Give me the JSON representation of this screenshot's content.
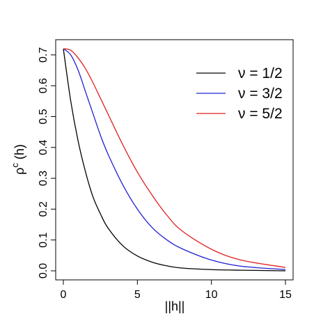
{
  "chart_data": {
    "type": "line",
    "xlabel": "||h||",
    "ylabel": "ρ^c (h)",
    "ylabel_base": "ρ",
    "ylabel_sup": "c",
    "ylabel_arg": " (h)",
    "xlim": [
      0,
      15
    ],
    "ylim": [
      0,
      0.72
    ],
    "xticks": [
      0,
      5,
      10,
      15
    ],
    "xtick_labels": [
      "0",
      "5",
      "10",
      "15"
    ],
    "yticks": [
      0,
      0.1,
      0.2,
      0.3,
      0.4,
      0.5,
      0.6,
      0.7
    ],
    "ytick_labels": [
      "0.0",
      "0.1",
      "0.2",
      "0.3",
      "0.4",
      "0.5",
      "0.6",
      "0.7"
    ],
    "grid": false,
    "legend_position": "top-right",
    "series": [
      {
        "name": "ν = 1/2",
        "color": "#000000",
        "x": [
          0,
          0.5,
          1,
          1.5,
          2,
          2.5,
          3,
          4,
          5,
          6,
          7,
          8,
          10,
          12,
          15
        ],
        "y": [
          0.72,
          0.55,
          0.42,
          0.32,
          0.24,
          0.185,
          0.14,
          0.082,
          0.048,
          0.028,
          0.016,
          0.009,
          0.004,
          0.002,
          0.0
        ]
      },
      {
        "name": "ν = 3/2",
        "color": "#2020d0",
        "x": [
          0,
          0.5,
          1,
          1.5,
          2,
          2.5,
          3,
          4,
          5,
          6,
          7,
          8,
          10,
          12,
          15
        ],
        "y": [
          0.72,
          0.7,
          0.65,
          0.58,
          0.51,
          0.44,
          0.38,
          0.28,
          0.2,
          0.14,
          0.1,
          0.072,
          0.035,
          0.015,
          0.004
        ]
      },
      {
        "name": "ν = 5/2",
        "color": "#e02020",
        "x": [
          0,
          0.5,
          1,
          1.5,
          2,
          2.5,
          3,
          4,
          5,
          6,
          7,
          8,
          10,
          12,
          15
        ],
        "y": [
          0.72,
          0.715,
          0.69,
          0.655,
          0.61,
          0.56,
          0.51,
          0.41,
          0.32,
          0.245,
          0.18,
          0.13,
          0.07,
          0.035,
          0.011
        ]
      }
    ]
  }
}
